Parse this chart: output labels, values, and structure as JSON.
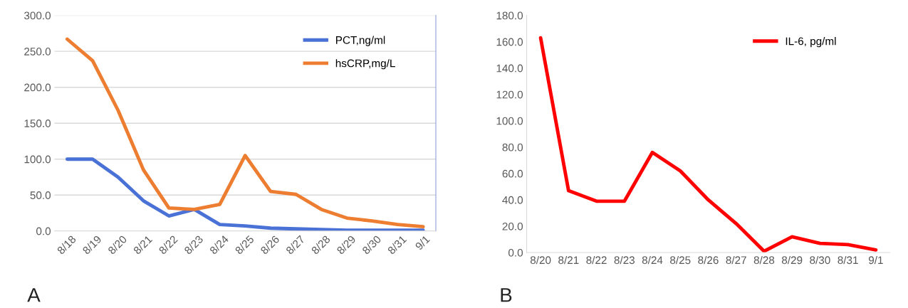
{
  "chart_data": [
    {
      "type": "line",
      "categories": [
        "8/18",
        "8/19",
        "8/20",
        "8/21",
        "8/22",
        "8/23",
        "8/24",
        "8/25",
        "8/26",
        "8/27",
        "8/28",
        "8/29",
        "8/30",
        "8/31",
        "9/1"
      ],
      "series": [
        {
          "name": "PCT,ng/ml",
          "color": "#4a72d6",
          "values": [
            100,
            100,
            75,
            42,
            21,
            30,
            9,
            7,
            4,
            3,
            2,
            1,
            1,
            1,
            1
          ]
        },
        {
          "name": "hsCRP,mg/L",
          "color": "#ed7d31",
          "values": [
            267,
            237,
            168,
            85,
            32,
            30,
            37,
            105,
            55,
            51,
            30,
            18,
            14,
            9,
            6
          ]
        }
      ],
      "ylim": [
        0,
        300
      ],
      "yticks": [
        {
          "value": 0,
          "label": "0.0"
        },
        {
          "value": 50,
          "label": "50.0"
        },
        {
          "value": 100,
          "label": "100.0"
        },
        {
          "value": 150,
          "label": "150.0"
        },
        {
          "value": 200,
          "label": "200.0"
        },
        {
          "value": 250,
          "label": "250.0"
        },
        {
          "value": 300,
          "label": "300.0"
        }
      ],
      "grid": "y",
      "legend": "top right",
      "marker": "none",
      "line_style": "solid",
      "annotations": [
        "A"
      ]
    },
    {
      "type": "line",
      "categories": [
        "8/20",
        "8/21",
        "8/22",
        "8/23",
        "8/24",
        "8/25",
        "8/26",
        "8/27",
        "8/28",
        "8/29",
        "8/30",
        "8/31",
        "9/1"
      ],
      "series": [
        {
          "name": "IL-6, pg/ml",
          "color": "#ff0000",
          "values": [
            163,
            47,
            39,
            39,
            76,
            62,
            40,
            22,
            1,
            12,
            7,
            6,
            2
          ]
        }
      ],
      "ylim": [
        0,
        180
      ],
      "yticks": [
        {
          "value": 0,
          "label": "0.0"
        },
        {
          "value": 20,
          "label": "20.0"
        },
        {
          "value": 40,
          "label": "40.0"
        },
        {
          "value": 60,
          "label": "60.0"
        },
        {
          "value": 80,
          "label": "80.0"
        },
        {
          "value": 100,
          "label": "100.0"
        },
        {
          "value": 120,
          "label": "120.0"
        },
        {
          "value": 140,
          "label": "140.0"
        },
        {
          "value": 160,
          "label": "160.0"
        },
        {
          "value": 180,
          "label": "180.0"
        }
      ],
      "grid": false,
      "legend": "top right",
      "marker": "none",
      "line_style": "solid",
      "annotations": [
        "B"
      ]
    }
  ]
}
